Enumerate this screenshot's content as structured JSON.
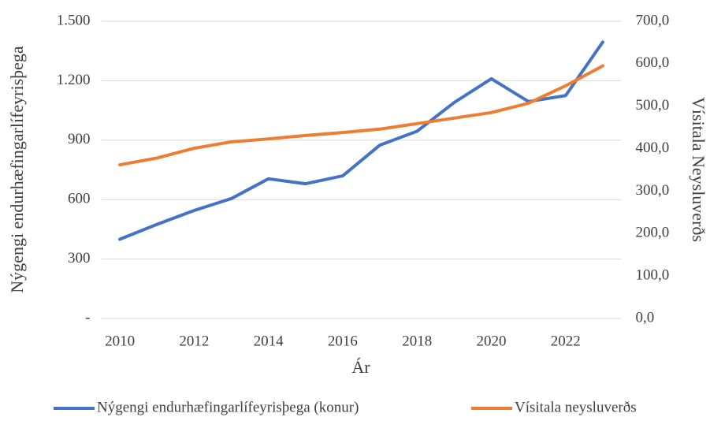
{
  "chart_data": {
    "type": "line",
    "xlabel": "Ár",
    "ylabel": "Nýgengi endurhæfingarlífeyrisþega",
    "y2label": "Vísitala Neysluverðs",
    "x": [
      2010,
      2011,
      2012,
      2013,
      2014,
      2015,
      2016,
      2017,
      2018,
      2019,
      2020,
      2021,
      2022,
      2023
    ],
    "xlim": [
      2009.5,
      2023.5
    ],
    "xticks": [
      2010,
      2012,
      2014,
      2016,
      2018,
      2020,
      2022
    ],
    "ylim": [
      0,
      1500
    ],
    "yticks": [
      {
        "value": 0,
        "label": "-"
      },
      300,
      600,
      900,
      {
        "value": 1200,
        "label": "1.200"
      },
      {
        "value": 1500,
        "label": "1.500"
      }
    ],
    "y2lim": [
      0,
      700
    ],
    "y2ticks": [
      {
        "value": 0,
        "label": "0,0"
      },
      {
        "value": 100,
        "label": "100,0"
      },
      {
        "value": 200,
        "label": "200,0"
      },
      {
        "value": 300,
        "label": "300,0"
      },
      {
        "value": 400,
        "label": "400,0"
      },
      {
        "value": 500,
        "label": "500,0"
      },
      {
        "value": 600,
        "label": "600,0"
      },
      {
        "value": 700,
        "label": "700,0"
      }
    ],
    "grid": true,
    "legend": "bottom",
    "series": [
      {
        "name": "Nýgengi endurhæfingarlífeyrisþega (konur)",
        "color": "#4472c4",
        "values": [
          400,
          475,
          545,
          605,
          705,
          680,
          720,
          875,
          945,
          1090,
          1210,
          1095,
          1125,
          1395
        ]
      },
      {
        "name": "Vísitala neysluverðs",
        "color": "#ed7d31",
        "axis": "y2",
        "values": [
          362,
          378,
          401,
          416,
          423,
          431,
          438,
          446,
          459,
          472,
          485,
          507,
          548,
          595
        ]
      }
    ]
  }
}
